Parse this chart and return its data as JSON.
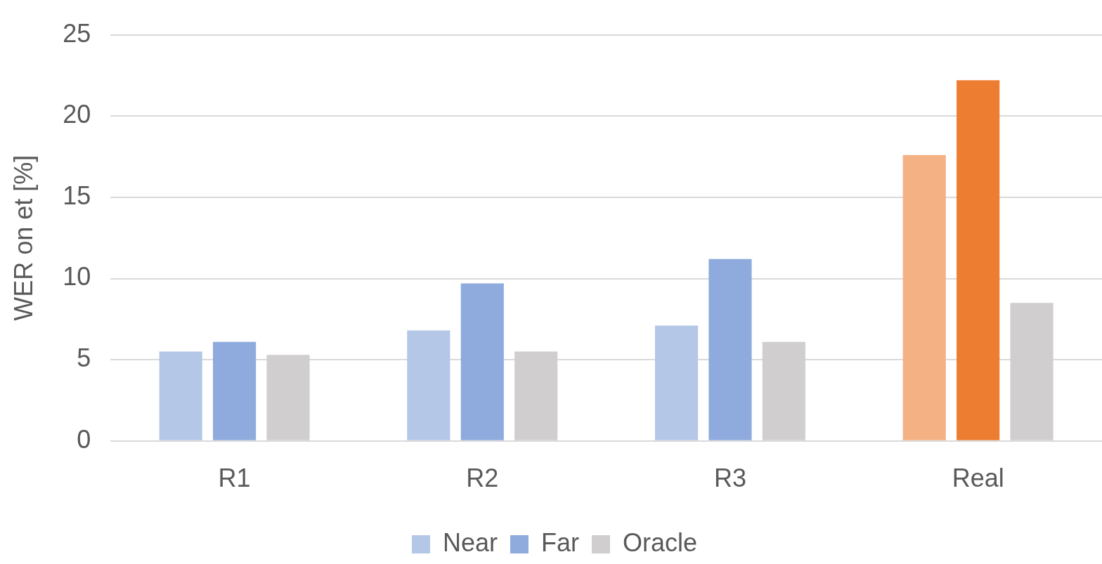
{
  "chart_data": {
    "type": "bar",
    "ylabel": "WER on et [%]",
    "categories": [
      "R1",
      "R2",
      "R3",
      "Real"
    ],
    "series": [
      {
        "name": "Near",
        "color": "#b4c7e7",
        "colors": [
          "#b4c7e7",
          "#b4c7e7",
          "#b4c7e7",
          "#f4b183"
        ],
        "values": [
          5.5,
          6.8,
          7.1,
          17.6
        ]
      },
      {
        "name": "Far",
        "color": "#8faadc",
        "colors": [
          "#8faadc",
          "#8faadc",
          "#8faadc",
          "#ed7d31"
        ],
        "values": [
          6.1,
          9.7,
          11.2,
          22.2
        ]
      },
      {
        "name": "Oracle",
        "color": "#d0cece",
        "colors": [
          "#d0cece",
          "#d0cece",
          "#d0cece",
          "#d0cece"
        ],
        "values": [
          5.3,
          5.5,
          6.1,
          8.5
        ]
      }
    ],
    "ylim": [
      0,
      25
    ],
    "yticks": [
      0,
      5,
      10,
      15,
      20,
      25
    ],
    "grid": "y",
    "legend": "bottom"
  }
}
